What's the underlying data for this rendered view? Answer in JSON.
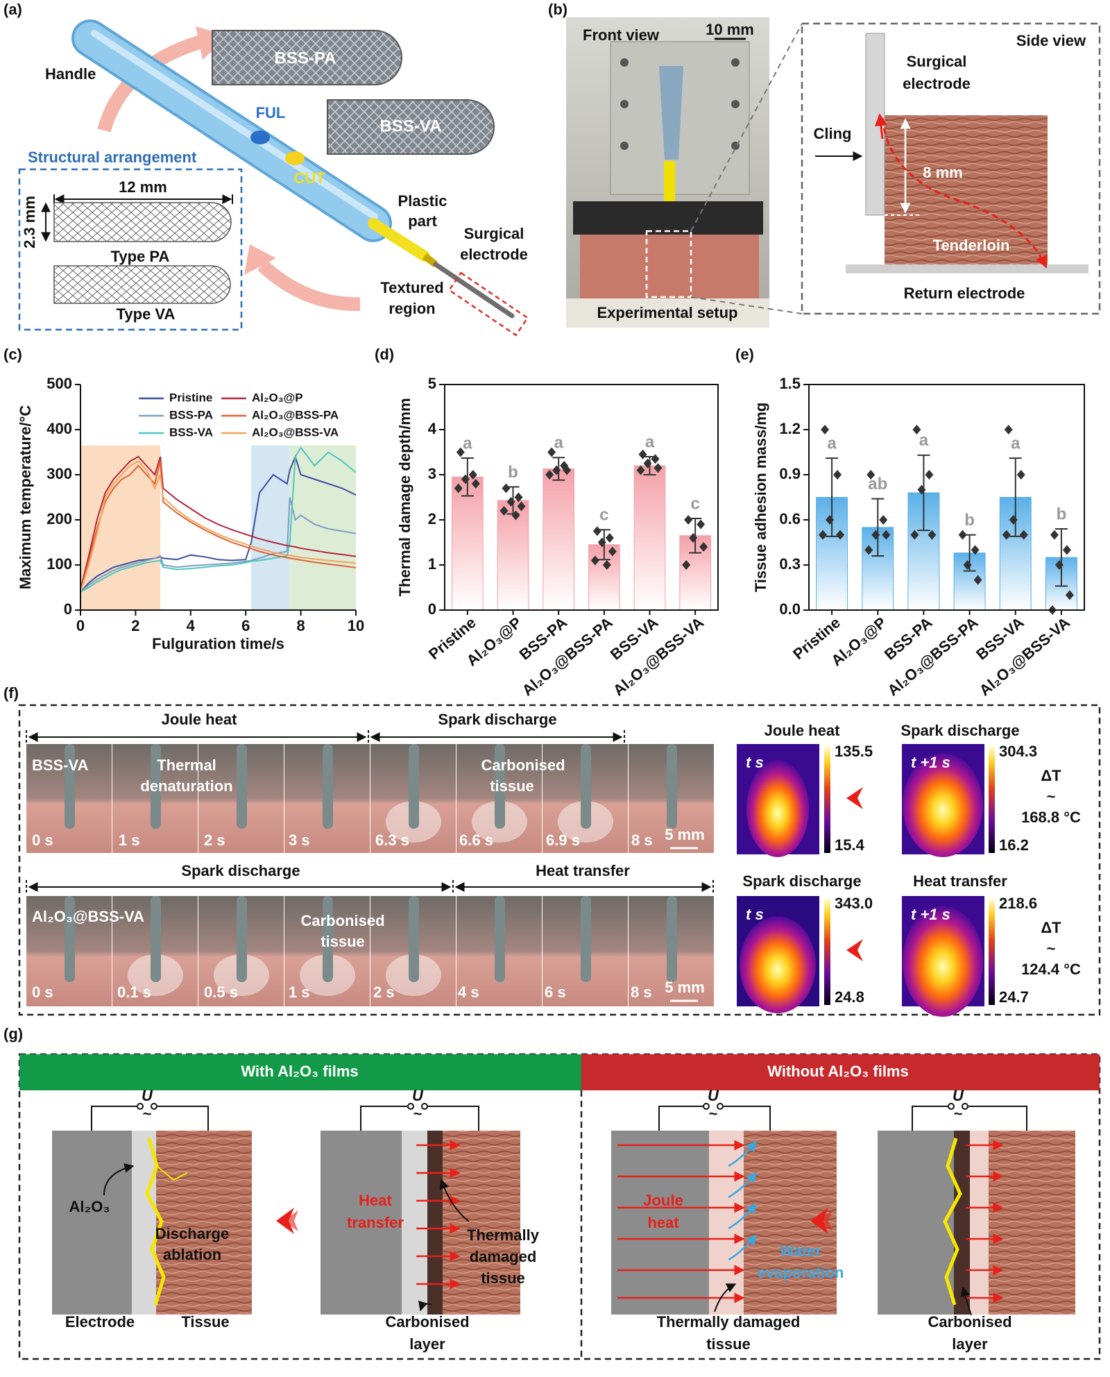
{
  "a": {
    "label": "(a)",
    "handle": "Handle",
    "bss_pa": "BSS-PA",
    "bss_va": "BSS-VA",
    "ful": "FUL",
    "cut": "CUT",
    "structural": "Structural arrangement",
    "width": "12 mm",
    "height": "2.3 mm",
    "type_pa": "Type PA",
    "type_va": "Type VA",
    "plastic": [
      "Plastic",
      "part"
    ],
    "surgical": [
      "Surgical",
      "electrode"
    ],
    "textured": [
      "Textured",
      "region"
    ]
  },
  "b": {
    "label": "(b)",
    "front": "Front view",
    "scale": "10 mm",
    "setup": "Experimental setup",
    "side": "Side view",
    "surgical": [
      "Surgical",
      "electrode"
    ],
    "cling": "Cling",
    "depth": "8 mm",
    "tenderloin": "Tenderloin",
    "return": "Return electrode"
  },
  "chart_data": [
    {
      "type": "line",
      "panel": "(c)",
      "xlabel": "Fulguration time/s",
      "ylabel": "Maximum temperature/°C",
      "xlim": [
        0,
        10
      ],
      "ylim": [
        0,
        500
      ],
      "xticks": [
        0,
        2,
        4,
        6,
        8,
        10
      ],
      "yticks": [
        0,
        100,
        200,
        300,
        400,
        500
      ],
      "legend": "upper right",
      "spans": [
        {
          "x": [
            0,
            2.9
          ],
          "y": 365,
          "color": "#fbdcc0"
        },
        {
          "x": [
            6.2,
            7.6
          ],
          "y": 365,
          "color": "#d4e6f2"
        },
        {
          "x": [
            7.6,
            10
          ],
          "y": 365,
          "color": "#ddecd5"
        }
      ],
      "x": [
        0,
        0.3,
        0.6,
        0.9,
        1.2,
        1.5,
        1.8,
        2.1,
        2.4,
        2.7,
        2.9,
        3.0,
        3.5,
        4,
        4.5,
        5,
        5.5,
        6,
        6.2,
        6.5,
        7,
        7.5,
        7.6,
        7.8,
        8,
        8.5,
        9,
        9.5,
        10
      ],
      "series": [
        {
          "name": "Pristine",
          "color": "#3b4ea0",
          "values": [
            40,
            60,
            75,
            85,
            95,
            100,
            105,
            110,
            112,
            115,
            118,
            115,
            112,
            122,
            118,
            112,
            110,
            112,
            150,
            260,
            300,
            280,
            310,
            340,
            300,
            290,
            280,
            270,
            255
          ]
        },
        {
          "name": "BSS-PA",
          "color": "#7b9fc4",
          "values": [
            40,
            55,
            68,
            78,
            88,
            95,
            100,
            105,
            110,
            115,
            120,
            100,
            95,
            98,
            100,
            102,
            104,
            108,
            110,
            115,
            125,
            130,
            250,
            200,
            210,
            190,
            180,
            175,
            170
          ]
        },
        {
          "name": "BSS-VA",
          "color": "#4ec6bf",
          "values": [
            40,
            50,
            62,
            72,
            82,
            90,
            95,
            100,
            105,
            108,
            110,
            95,
            90,
            92,
            95,
            98,
            100,
            105,
            108,
            110,
            115,
            120,
            150,
            340,
            360,
            320,
            350,
            330,
            305
          ]
        },
        {
          "name": "Al₂O₃@P",
          "color": "#b4233c",
          "values": [
            45,
            120,
            200,
            260,
            290,
            310,
            330,
            340,
            320,
            300,
            340,
            270,
            245,
            225,
            205,
            190,
            178,
            168,
            164,
            158,
            150,
            143,
            142,
            140,
            137,
            132,
            127,
            123,
            119
          ]
        },
        {
          "name": "Al₂O₃@BSS-PA",
          "color": "#e2612f",
          "values": [
            40,
            110,
            180,
            240,
            270,
            290,
            300,
            320,
            300,
            280,
            330,
            240,
            215,
            195,
            178,
            163,
            150,
            140,
            136,
            130,
            122,
            116,
            115,
            113,
            111,
            106,
            102,
            98,
            94
          ]
        },
        {
          "name": "Al₂O₃@BSS-VA",
          "color": "#f4a35a",
          "values": [
            40,
            100,
            170,
            250,
            280,
            300,
            320,
            330,
            310,
            270,
            300,
            250,
            222,
            200,
            183,
            168,
            156,
            146,
            142,
            136,
            128,
            122,
            121,
            119,
            117,
            113,
            110,
            107,
            104
          ]
        }
      ]
    },
    {
      "type": "bar",
      "panel": "(d)",
      "ylabel": "Thermal damage depth/mm",
      "color": "#f4a0a8",
      "ylim": [
        0,
        5
      ],
      "yticks": [
        0,
        1,
        2,
        3,
        4,
        5
      ],
      "categories": [
        "Pristine",
        "Al₂O₃@P",
        "BSS-PA",
        "Al₂O₃@BSS-PA",
        "BSS-VA",
        "Al₂O₃@BSS-VA"
      ],
      "values": [
        2.95,
        2.43,
        3.13,
        1.45,
        3.2,
        1.65
      ],
      "errors": [
        0.42,
        0.3,
        0.25,
        0.33,
        0.2,
        0.38
      ],
      "letters": [
        "a",
        "b",
        "a",
        "c",
        "a",
        "c"
      ],
      "points": [
        [
          3.5,
          3.0,
          2.9,
          2.8,
          2.7
        ],
        [
          2.7,
          2.5,
          2.4,
          2.3,
          2.2,
          2.1
        ],
        [
          3.5,
          3.2,
          3.1,
          3.1,
          3.0
        ],
        [
          1.75,
          1.6,
          1.5,
          1.3,
          1.1,
          1.0
        ],
        [
          3.45,
          3.35,
          3.25,
          3.15,
          3.1
        ],
        [
          2.0,
          1.9,
          1.6,
          1.4,
          1.0
        ]
      ]
    },
    {
      "type": "bar",
      "panel": "(e)",
      "ylabel": "Tissue adhesion mass/mg",
      "color": "#5bb0e8",
      "ylim": [
        0,
        1.5
      ],
      "yticks": [
        {
          "value": 0,
          "label": "0.0"
        },
        0.3,
        0.6,
        0.9,
        1.2,
        1.5
      ],
      "categories": [
        "Pristine",
        "Al₂O₃@P",
        "BSS-PA",
        "Al₂O₃@BSS-PA",
        "BSS-VA",
        "Al₂O₃@BSS-VA"
      ],
      "values": [
        0.75,
        0.55,
        0.78,
        0.38,
        0.75,
        0.35
      ],
      "errors": [
        0.26,
        0.19,
        0.25,
        0.12,
        0.26,
        0.19
      ],
      "letters": [
        "a",
        "ab",
        "a",
        "b",
        "a",
        "b"
      ],
      "points": [
        [
          1.2,
          0.9,
          0.6,
          0.5,
          0.5
        ],
        [
          0.9,
          0.6,
          0.5,
          0.5,
          0.4
        ],
        [
          1.2,
          0.9,
          0.8,
          0.5,
          0.5
        ],
        [
          0.5,
          0.4,
          0.3,
          0.2
        ],
        [
          1.2,
          0.9,
          0.6,
          0.5,
          0.5
        ],
        [
          0.5,
          0.4,
          0.3,
          0.1,
          0.0
        ]
      ]
    }
  ],
  "f": {
    "label": "(f)",
    "row1": {
      "phases": [
        "Joule heat",
        "Spark discharge"
      ],
      "sample": "BSS-VA",
      "notes": [
        [
          "Thermal",
          "denaturation"
        ],
        [
          "Carbonised",
          "tissue"
        ]
      ],
      "times": [
        "0 s",
        "1 s",
        "2 s",
        "3 s",
        "6.3 s",
        "6.6 s",
        "6.9 s",
        "8 s"
      ],
      "scale": "5 mm"
    },
    "row2": {
      "phases": [
        "Spark discharge",
        "Heat transfer"
      ],
      "sample": "Al₂O₃@BSS-VA",
      "notes": [
        [
          "Carbonised",
          "tissue"
        ]
      ],
      "times": [
        "0 s",
        "0.1 s",
        "0.5 s",
        "1 s",
        "2 s",
        "4 s",
        "6 s",
        "8 s"
      ],
      "scale": "5 mm"
    },
    "thermal": [
      {
        "left": {
          "title": "Joule heat",
          "time": "t s",
          "max": "135.5",
          "min": "15.4"
        },
        "right": {
          "title": "Spark discharge",
          "time": "t +1 s",
          "max": "304.3",
          "min": "16.2"
        },
        "delta": [
          "ΔT",
          "~",
          "168.8 °C"
        ]
      },
      {
        "left": {
          "title": "Spark discharge",
          "time": "t s",
          "max": "343.0",
          "min": "24.8"
        },
        "right": {
          "title": "Heat transfer",
          "time": "t +1 s",
          "max": "218.6",
          "min": "24.7"
        },
        "delta": [
          "ΔT",
          "~",
          "124.4 °C"
        ]
      }
    ]
  },
  "g": {
    "label": "(g)",
    "with": "With Al₂O₃ films",
    "without": "Without Al₂O₃ films",
    "u": "U",
    "tilde": "~",
    "al2o3": "Al₂O₃",
    "discharge": [
      "Discharge",
      "ablation"
    ],
    "electrode": "Electrode",
    "tissue": "Tissue",
    "heat_transfer": [
      "Heat",
      "transfer"
    ],
    "damaged": [
      "Thermally",
      "damaged",
      "tissue"
    ],
    "carbonised_left": [
      "Carbonised",
      "layer"
    ],
    "joule": [
      "Joule",
      "heat"
    ],
    "water": [
      "Water",
      "evaporation"
    ],
    "damaged_bottom": [
      "Thermally damaged",
      "tissue"
    ],
    "carbonised_right": [
      "Carbonised",
      "layer"
    ]
  }
}
